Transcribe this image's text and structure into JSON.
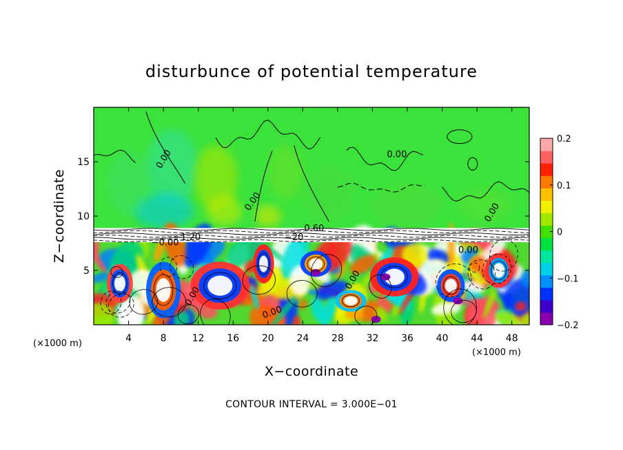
{
  "chart_data": {
    "type": "heatmap",
    "title": "disturbunce of potential temperature",
    "xlabel": "X−coordinate",
    "ylabel": "Z−coordinate",
    "x_unit_label": "(×1000 m)",
    "z_unit_label": "(×1000 m)",
    "xlim": [
      0,
      50
    ],
    "ylim": [
      0,
      20
    ],
    "x_ticks": [
      4,
      8,
      12,
      16,
      20,
      24,
      28,
      32,
      36,
      40,
      44,
      48
    ],
    "x_tick_labels": [
      "4",
      "8",
      "12",
      "16",
      "20",
      "24",
      "28",
      "32",
      "36",
      "40",
      "44",
      "48"
    ],
    "y_ticks": [
      5,
      10,
      15
    ],
    "y_tick_labels": [
      "5",
      "10",
      "15"
    ],
    "colorbar": {
      "min": -0.2,
      "max": 0.2,
      "ticks": [
        0.2,
        0.1,
        0,
        -0.1,
        -0.2
      ],
      "tick_labels": [
        "0.2",
        "0.1",
        "0",
        "−0.1",
        "−0.2"
      ],
      "colors": [
        "#8a00b0",
        "#3c00c8",
        "#0030ff",
        "#0090ff",
        "#00d0e8",
        "#00e8a0",
        "#00e040",
        "#40e000",
        "#a0e800",
        "#f0f000",
        "#ffc000",
        "#ff7800",
        "#ff2000",
        "#ff6060",
        "#ffa8a8"
      ]
    },
    "contour_interval_text": "CONTOUR INTERVAL = 3.000E−01",
    "contour_labels": [
      {
        "text": "0.00",
        "x": 8.3,
        "z": 15.1,
        "rot": -58
      },
      {
        "text": "0.00",
        "x": 34.8,
        "z": 15.4,
        "rot": 0
      },
      {
        "text": "0.00",
        "x": 18.5,
        "z": 11.2,
        "rot": -55
      },
      {
        "text": "0.00",
        "x": 46.0,
        "z": 10.2,
        "rot": -60
      },
      {
        "text": "0.60",
        "x": 25.3,
        "z": 8.6,
        "rot": 0
      },
      {
        "text": "−1.20",
        "x": 10.7,
        "z": 7.8,
        "rot": 0
      },
      {
        "text": "−0.00",
        "x": 8.2,
        "z": 7.3,
        "rot": 0
      },
      {
        "text": "−20",
        "x": 23.0,
        "z": 7.8,
        "rot": 0
      },
      {
        "text": "0.00",
        "x": 43.0,
        "z": 6.6,
        "rot": 0
      },
      {
        "text": "0.00",
        "x": 30.0,
        "z": 4.0,
        "rot": -60
      },
      {
        "text": "0.00",
        "x": 11.6,
        "z": 2.5,
        "rot": -60
      },
      {
        "text": "0.00",
        "x": 20.6,
        "z": 0.9,
        "rot": -20
      }
    ]
  }
}
